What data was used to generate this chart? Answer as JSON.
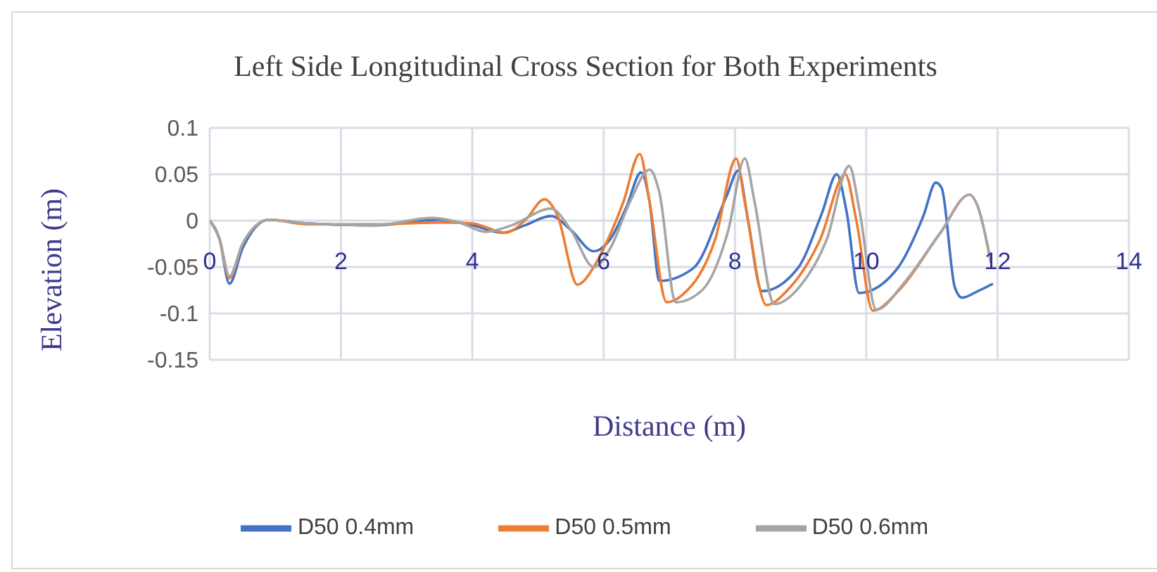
{
  "chart_data": {
    "type": "line",
    "title": "Left Side Longitudinal Cross Section for Both Experiments",
    "xlabel": "Distance (m)",
    "ylabel": "Elevation (m)",
    "xlim": [
      0,
      14
    ],
    "xticks": [
      0,
      2,
      4,
      6,
      8,
      10,
      12,
      14
    ],
    "ylim": [
      -0.15,
      0.1
    ],
    "yticks": [
      -0.15,
      -0.1,
      -0.05,
      0,
      0.05,
      0.1
    ],
    "grid": true,
    "legend": "bottom",
    "marker": "none",
    "line_style": "solid",
    "series": [
      {
        "name": "D50 0.4mm",
        "color": "#4472c4",
        "x": [
          0,
          0.15,
          0.3,
          0.5,
          0.9,
          1.5,
          2.5,
          3.5,
          4.0,
          4.46,
          4.8,
          5.2,
          5.5,
          5.85,
          6.1,
          6.35,
          6.57,
          6.7,
          6.85,
          7.37,
          7.87,
          8.05,
          8.2,
          8.41,
          8.96,
          9.33,
          9.55,
          9.7,
          9.89,
          10.48,
          10.87,
          11.06,
          11.15,
          11.35,
          11.46,
          11.7,
          11.93
        ],
        "values": [
          0,
          -0.02,
          -0.068,
          -0.03,
          0.001,
          -0.003,
          -0.005,
          0.001,
          -0.005,
          -0.013,
          -0.005,
          0.005,
          -0.01,
          -0.033,
          -0.02,
          0.015,
          0.052,
          0.02,
          -0.065,
          -0.051,
          0.026,
          0.054,
          0,
          -0.076,
          -0.051,
          0.009,
          0.05,
          0.01,
          -0.078,
          -0.051,
          0.005,
          0.041,
          0.035,
          -0.072,
          -0.083,
          -0.076,
          -0.068
        ]
      },
      {
        "name": "D50 0.5mm",
        "color": "#ed7d31",
        "x": [
          0,
          0.15,
          0.3,
          0.5,
          0.9,
          1.5,
          2.5,
          3.5,
          4.0,
          4.5,
          4.8,
          5.1,
          5.3,
          5.6,
          5.85,
          6.0,
          6.3,
          6.55,
          6.7,
          6.96,
          7.2,
          7.7,
          8.02,
          8.15,
          8.48,
          8.8,
          9.3,
          9.68,
          9.85,
          10.1,
          10.5,
          11.13,
          11.57,
          11.7,
          11.9
        ],
        "values": [
          0,
          -0.02,
          -0.062,
          -0.025,
          0.001,
          -0.004,
          -0.004,
          -0.002,
          -0.003,
          -0.013,
          0,
          0.023,
          0.005,
          -0.069,
          -0.05,
          -0.03,
          0.02,
          0.072,
          0.02,
          -0.088,
          -0.08,
          -0.02,
          0.067,
          0.02,
          -0.091,
          -0.075,
          -0.02,
          0.05,
          0,
          -0.097,
          -0.075,
          -0.013,
          0.028,
          0.015,
          -0.046
        ]
      },
      {
        "name": "D50 0.6mm",
        "color": "#a5a5a5",
        "x": [
          0,
          0.15,
          0.3,
          0.5,
          0.9,
          1.5,
          2.5,
          3.4,
          3.8,
          4.2,
          4.6,
          5.2,
          5.5,
          5.85,
          6.1,
          6.4,
          6.7,
          6.85,
          7.1,
          7.5,
          7.9,
          8.15,
          8.3,
          8.6,
          9.0,
          9.4,
          9.74,
          9.9,
          10.15,
          10.6,
          11.13,
          11.57,
          11.7,
          11.9
        ],
        "values": [
          0,
          -0.02,
          -0.06,
          -0.025,
          0.001,
          -0.003,
          -0.005,
          0.003,
          -0.002,
          -0.012,
          -0.005,
          0.013,
          -0.01,
          -0.05,
          -0.03,
          0.02,
          0.055,
          0.03,
          -0.088,
          -0.075,
          -0.01,
          0.067,
          0.02,
          -0.09,
          -0.07,
          -0.02,
          0.059,
          0.01,
          -0.096,
          -0.065,
          -0.013,
          0.028,
          0.015,
          -0.045
        ]
      }
    ]
  }
}
